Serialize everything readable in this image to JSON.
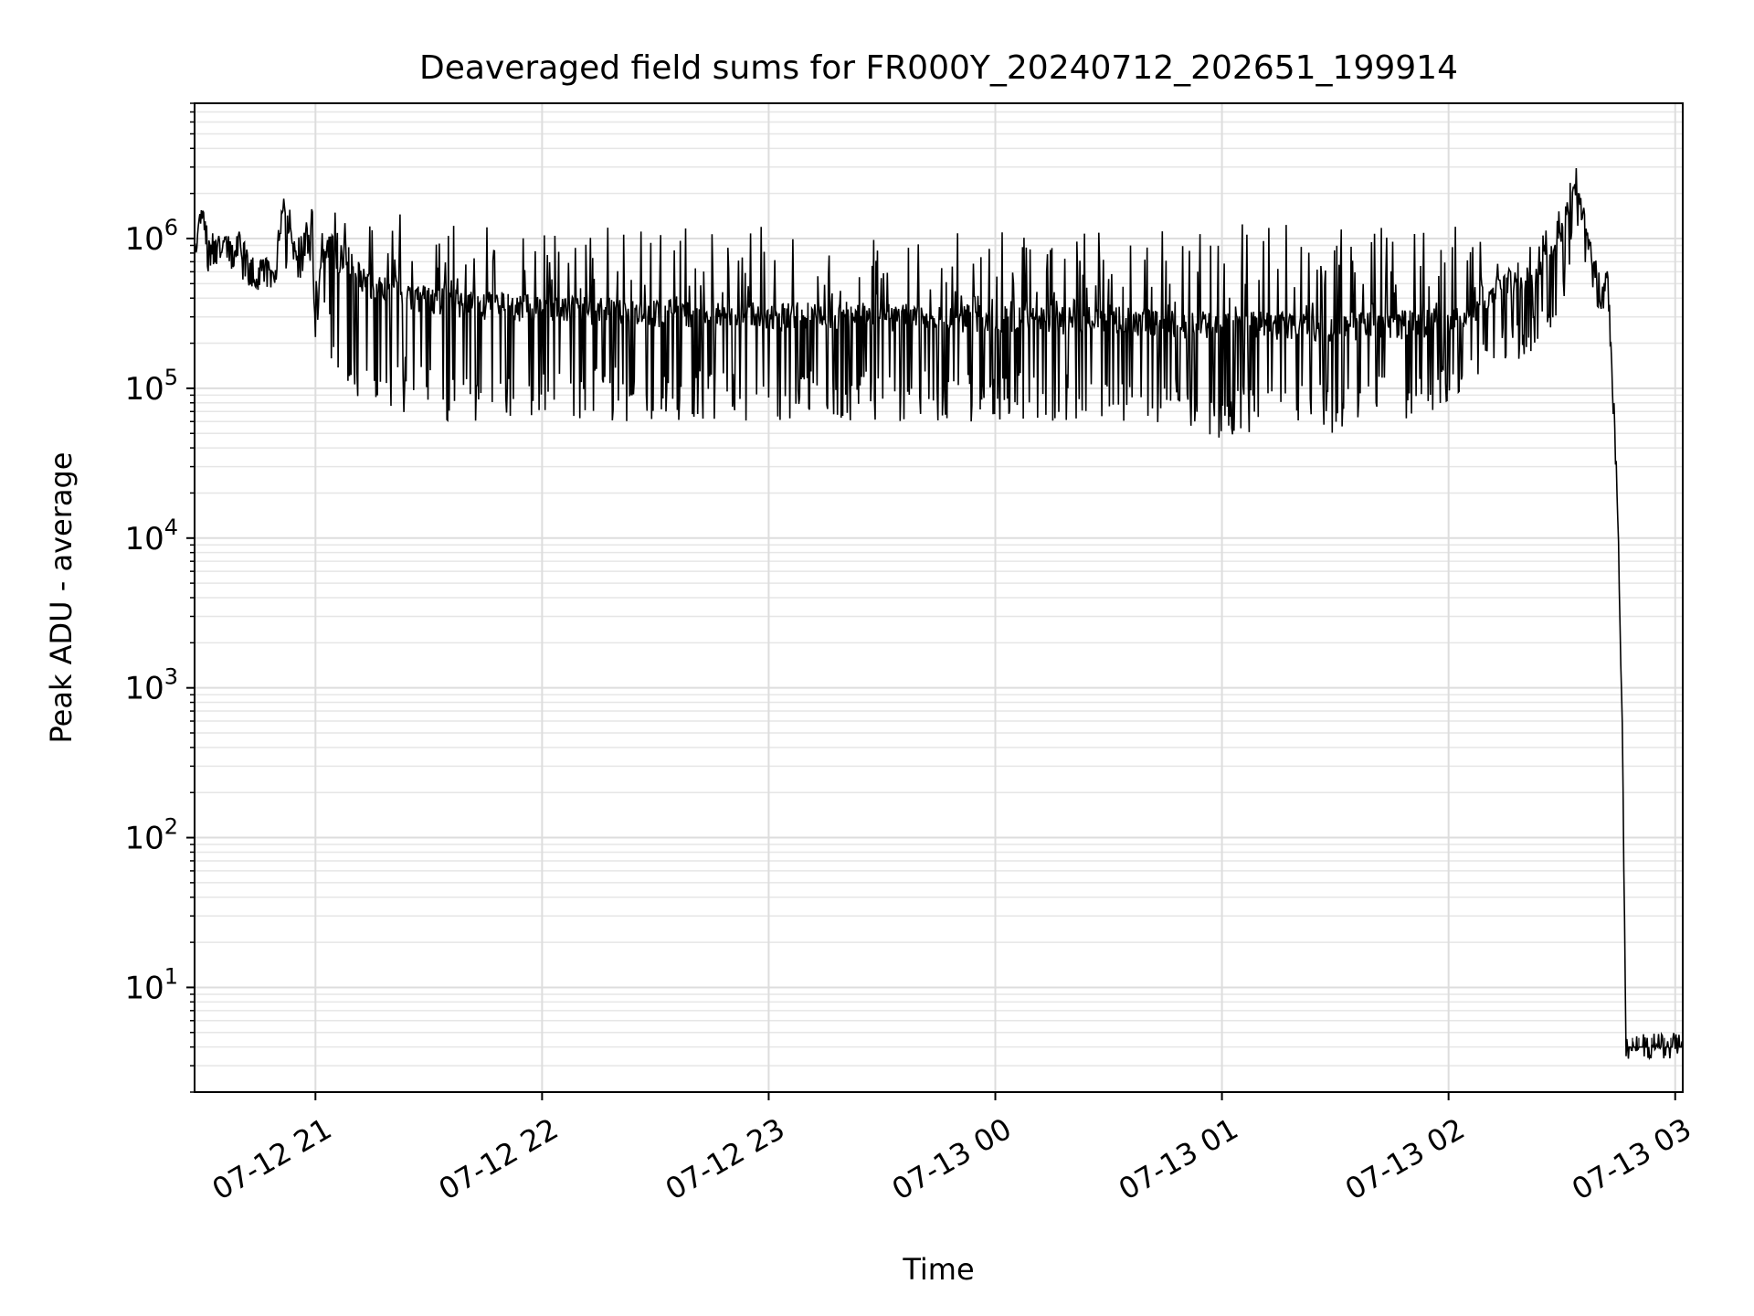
{
  "chart_data": {
    "type": "line",
    "title": "Deaveraged field sums for FR000Y_20240712_202651_199914",
    "xlabel": "Time",
    "ylabel": "Peak ADU - average",
    "yscale": "log",
    "ylim": [
      2,
      8000000
    ],
    "xlim": [
      "2024-07-12 20:28",
      "2024-07-13 03:02"
    ],
    "grid": true,
    "line_color": "#000000",
    "x_ticks": [
      {
        "t": "2024-07-12 21:00",
        "label": "07-12 21"
      },
      {
        "t": "2024-07-12 22:00",
        "label": "07-12 22"
      },
      {
        "t": "2024-07-12 23:00",
        "label": "07-12 23"
      },
      {
        "t": "2024-07-13 00:00",
        "label": "07-13 00"
      },
      {
        "t": "2024-07-13 01:00",
        "label": "07-13 01"
      },
      {
        "t": "2024-07-13 02:00",
        "label": "07-13 02"
      },
      {
        "t": "2024-07-13 03:00",
        "label": "07-13 03"
      }
    ],
    "y_ticks": [
      {
        "value": 10,
        "base": "10",
        "exp": "1"
      },
      {
        "value": 100,
        "base": "10",
        "exp": "2"
      },
      {
        "value": 1000,
        "base": "10",
        "exp": "3"
      },
      {
        "value": 10000,
        "base": "10",
        "exp": "4"
      },
      {
        "value": 100000,
        "base": "10",
        "exp": "5"
      },
      {
        "value": 1000000,
        "base": "10",
        "exp": "6"
      }
    ],
    "series": [
      {
        "x": [
          "2024-07-12 20:28",
          "2024-07-12 20:30",
          "2024-07-12 20:32",
          "2024-07-12 20:33",
          "2024-07-12 20:35",
          "2024-07-12 20:37",
          "2024-07-12 20:40",
          "2024-07-12 20:43",
          "2024-07-12 20:45",
          "2024-07-12 20:47",
          "2024-07-12 20:49",
          "2024-07-12 20:51",
          "2024-07-12 20:53",
          "2024-07-12 20:55",
          "2024-07-12 20:57",
          "2024-07-12 20:59",
          "2024-07-12 21:00",
          "2024-07-12 21:01",
          "2024-07-12 21:02",
          "2024-07-12 21:03",
          "2024-07-12 21:04",
          "2024-07-12 21:06",
          "2024-07-12 21:08",
          "2024-07-12 21:10",
          "2024-07-12 21:13",
          "2024-07-12 21:16",
          "2024-07-12 21:20",
          "2024-07-12 21:25",
          "2024-07-12 21:30",
          "2024-07-12 21:35",
          "2024-07-12 21:40",
          "2024-07-12 21:45",
          "2024-07-12 21:50",
          "2024-07-12 21:55",
          "2024-07-12 22:00",
          "2024-07-12 22:10",
          "2024-07-12 22:20",
          "2024-07-12 22:30",
          "2024-07-12 22:40",
          "2024-07-12 22:50",
          "2024-07-12 23:00",
          "2024-07-12 23:10",
          "2024-07-12 23:20",
          "2024-07-12 23:30",
          "2024-07-12 23:40",
          "2024-07-12 23:50",
          "2024-07-13 00:00",
          "2024-07-13 00:10",
          "2024-07-13 00:20",
          "2024-07-13 00:30",
          "2024-07-13 00:40",
          "2024-07-13 00:50",
          "2024-07-13 01:00",
          "2024-07-13 01:10",
          "2024-07-13 01:20",
          "2024-07-13 01:30",
          "2024-07-13 01:40",
          "2024-07-13 01:50",
          "2024-07-13 02:00",
          "2024-07-13 02:05",
          "2024-07-13 02:10",
          "2024-07-13 02:15",
          "2024-07-13 02:20",
          "2024-07-13 02:24",
          "2024-07-13 02:30",
          "2024-07-13 02:33",
          "2024-07-13 02:36",
          "2024-07-13 02:38",
          "2024-07-13 02:41",
          "2024-07-13 02:42",
          "2024-07-13 02:44",
          "2024-07-13 02:45",
          "2024-07-13 02:46",
          "2024-07-13 02:47",
          "2024-07-13 03:02"
        ],
        "y": [
          900000,
          1300000,
          800000,
          950000,
          800000,
          850000,
          900000,
          600000,
          550000,
          600000,
          550000,
          1200000,
          1300000,
          600000,
          1000000,
          1400000,
          200000,
          800000,
          600000,
          800000,
          900000,
          700000,
          800000,
          600000,
          500000,
          450000,
          420000,
          400000,
          380000,
          380000,
          350000,
          350000,
          350000,
          340000,
          330000,
          320000,
          320000,
          310000,
          310000,
          300000,
          300000,
          300000,
          300000,
          290000,
          290000,
          290000,
          280000,
          280000,
          280000,
          280000,
          270000,
          260000,
          260000,
          260000,
          250000,
          250000,
          260000,
          260000,
          280000,
          300000,
          400000,
          500000,
          500000,
          600000,
          1000000,
          2500000,
          1200000,
          700000,
          400000,
          600000,
          50000,
          10000,
          500,
          4,
          4
        ],
        "band_low": [
          700000,
          600000,
          600000,
          650000,
          600000,
          650000,
          500000,
          450000,
          450000,
          450000,
          450000,
          550000,
          550000,
          450000,
          600000,
          700000,
          150000,
          400000,
          300000,
          200000,
          150000,
          100000,
          90000,
          80000,
          75000,
          70000,
          70000,
          65000,
          65000,
          60000,
          60000,
          60000,
          60000,
          60000,
          60000,
          60000,
          60000,
          60000,
          60000,
          60000,
          60000,
          60000,
          60000,
          60000,
          60000,
          60000,
          60000,
          60000,
          60000,
          60000,
          55000,
          50000,
          45000,
          50000,
          50000,
          50000,
          55000,
          60000,
          80000,
          100000,
          120000,
          150000,
          160000,
          170000,
          300000,
          1000000,
          700000,
          400000,
          300000,
          500000,
          40000,
          8000,
          400,
          4,
          4
        ],
        "band_high": [
          1000000,
          1900000,
          1000000,
          1200000,
          1000000,
          1000000,
          1100000,
          800000,
          700000,
          800000,
          700000,
          1800000,
          2000000,
          900000,
          1400000,
          1600000,
          1200000,
          1500000,
          1400000,
          1500000,
          1500000,
          1500000,
          1500000,
          1500000,
          1500000,
          1500000,
          1500000,
          1400000,
          1400000,
          1300000,
          1300000,
          1250000,
          1250000,
          1200000,
          1200000,
          1200000,
          1200000,
          1200000,
          1200000,
          1200000,
          1200000,
          1200000,
          1200000,
          1150000,
          1150000,
          1100000,
          1100000,
          1100000,
          1100000,
          1100000,
          1100000,
          1200000,
          1200000,
          1300000,
          1300000,
          1300000,
          1300000,
          1300000,
          1300000,
          1200000,
          1000000,
          900000,
          900000,
          1000000,
          1800000,
          4000000,
          2500000,
          800000,
          600000,
          700000,
          60000,
          20000,
          600,
          4,
          4
        ]
      }
    ]
  }
}
